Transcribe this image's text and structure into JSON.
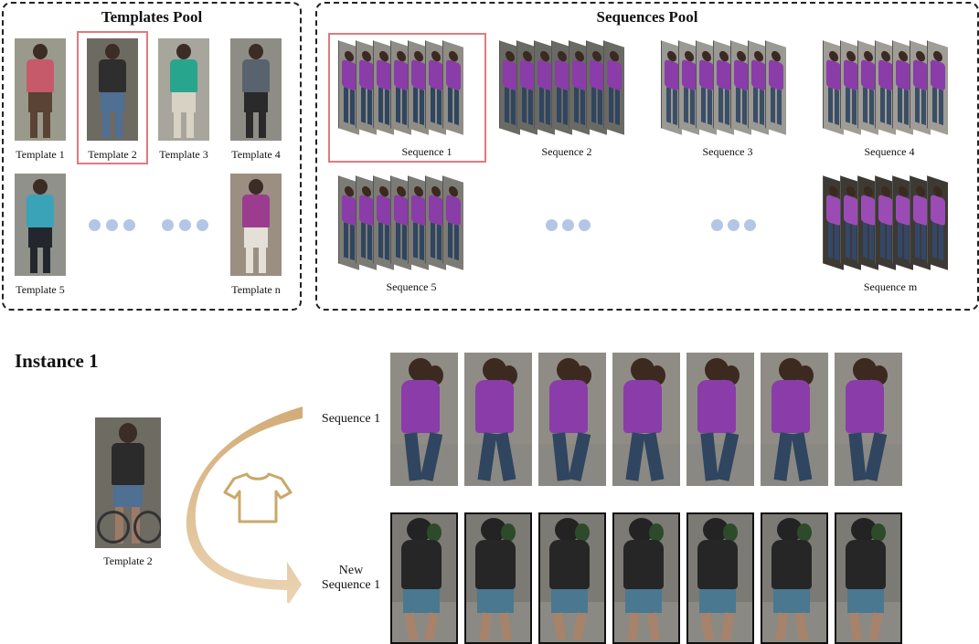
{
  "templates_pool": {
    "title": "Templates Pool",
    "templates": [
      {
        "label": "Template 1",
        "shirt": "#c65a6a",
        "pants": "#5a4234",
        "bg": "#9a9a8c"
      },
      {
        "label": "Template 2",
        "shirt": "#2e2e2e",
        "pants": "#4f6f93",
        "bg": "#6d6a62",
        "selected": true
      },
      {
        "label": "Template 3",
        "shirt": "#27a68d",
        "pants": "#d8d2c5",
        "bg": "#a8a59c"
      },
      {
        "label": "Template 4",
        "shirt": "#58636e",
        "pants": "#2a2a2a",
        "bg": "#8d8d86"
      },
      {
        "label": "Template 5",
        "shirt": "#3aa3b8",
        "pants": "#23272d",
        "bg": "#8f918a"
      },
      {
        "label": "Template n",
        "shirt": "#9c3c8e",
        "pants": "#e4e0d8",
        "bg": "#9b8f82"
      }
    ]
  },
  "sequences_pool": {
    "title": "Sequences Pool",
    "sequences": [
      {
        "label": "Sequence 1",
        "selected": true
      },
      {
        "label": "Sequence 2"
      },
      {
        "label": "Sequence 3"
      },
      {
        "label": "Sequence 4"
      },
      {
        "label": "Sequence 5"
      },
      {
        "label": "Sequence m"
      }
    ]
  },
  "instance": {
    "title": "Instance 1",
    "template_label": "Template 2",
    "sequence_label": "Sequence 1",
    "new_sequence_label_line1": "New",
    "new_sequence_label_line2": "Sequence 1"
  },
  "colors": {
    "purple_shirt": "#8a3ca8",
    "jeans": "#2f4560",
    "black_shirt": "#262626",
    "denim_shorts": "#4a7890",
    "highlight": "#e07a7e",
    "dots": "#b4c6e6",
    "arrow": "#d9b98a",
    "shirt_icon": "#c9a96a"
  },
  "icons": [
    "shirt-icon",
    "curved-arrow-icon",
    "ellipsis-dots-icon"
  ]
}
